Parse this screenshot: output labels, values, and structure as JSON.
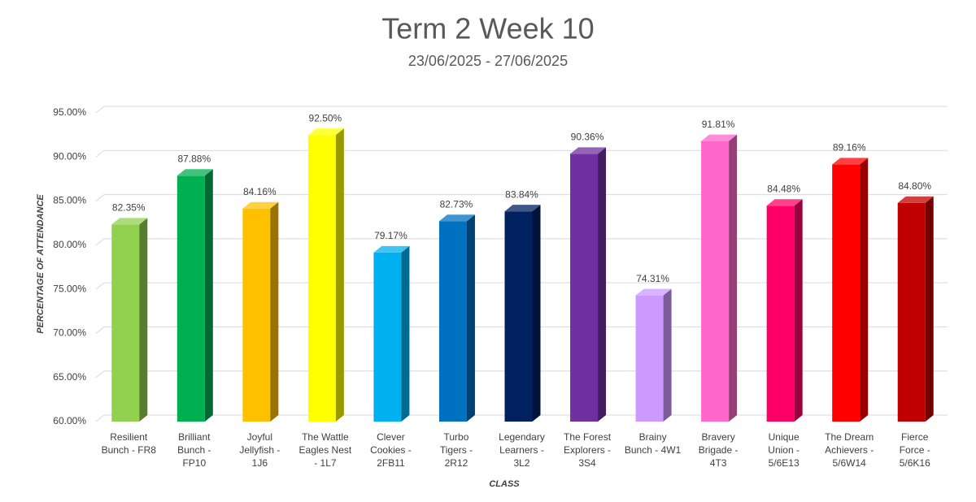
{
  "chart_data": {
    "type": "bar3d",
    "title": "Term 2 Week 10",
    "subtitle": "23/06/2025 - 27/06/2025",
    "x_label": "CLASS",
    "y_label": "PERCENTAGE OF ATTENDANCE",
    "categories": [
      "Resilient Bunch - FR8",
      "Brilliant Bunch - FP10",
      "Joyful Jellyfish - 1J6",
      "The Wattle Eagles Nest - 1L7",
      "Clever Cookies - 2FB11",
      "Turbo Tigers - 2R12",
      "Legendary Learners - 3L2",
      "The Forest Explorers - 3S4",
      "Brainy Bunch - 4W1",
      "Bravery Brigade - 4T3",
      "Unique Union - 5/6E13",
      "The Dream Achievers - 5/6W14",
      "Fierce Force - 5/6K16"
    ],
    "values": [
      82.35,
      87.88,
      84.16,
      92.5,
      79.17,
      82.73,
      83.84,
      90.36,
      74.31,
      91.81,
      84.48,
      89.16,
      84.8
    ],
    "value_labels": [
      "82.35%",
      "87.88%",
      "84.16%",
      "92.50%",
      "79.17%",
      "82.73%",
      "83.84%",
      "90.36%",
      "74.31%",
      "91.81%",
      "84.48%",
      "89.16%",
      "84.80%"
    ],
    "colors": [
      "#92d050",
      "#00b050",
      "#ffc000",
      "#ffff00",
      "#00b0f0",
      "#0070c0",
      "#002060",
      "#7030a0",
      "#cc99ff",
      "#ff66cc",
      "#ff0066",
      "#ff0000",
      "#c00000"
    ],
    "ylim": [
      60,
      95
    ],
    "yticks": [
      {
        "value": 60,
        "label": "60.00%"
      },
      {
        "value": 65,
        "label": "65.00%"
      },
      {
        "value": 70,
        "label": "70.00%"
      },
      {
        "value": 75,
        "label": "75.00%"
      },
      {
        "value": 80,
        "label": "80.00%"
      },
      {
        "value": 85,
        "label": "85.00%"
      },
      {
        "value": 90,
        "label": "90.00%"
      },
      {
        "value": 95,
        "label": "95.00%"
      }
    ],
    "grid": true
  }
}
